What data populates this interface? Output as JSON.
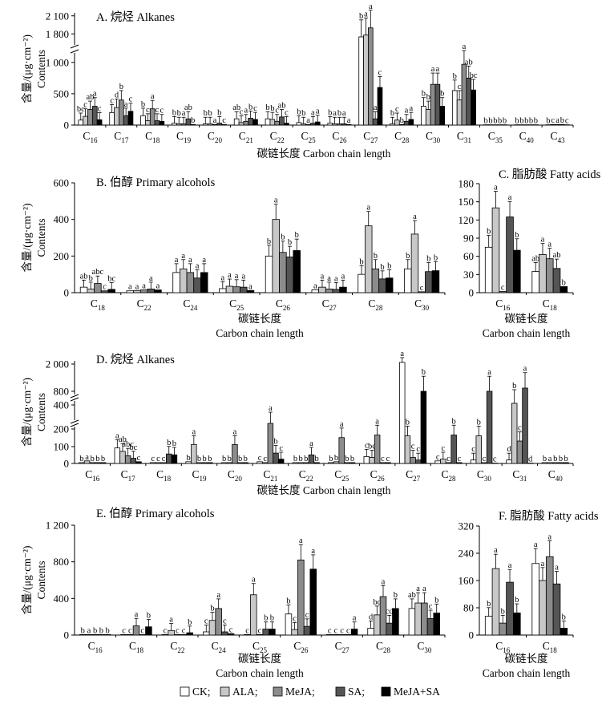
{
  "figure": {
    "legend": [
      "CK;",
      "ALA;",
      "MeJA;",
      "SA;",
      "MeJA+SA"
    ],
    "series_colors": [
      "#ffffff",
      "#c8c8c8",
      "#8c8c8c",
      "#555555",
      "#000000"
    ]
  },
  "chart_data": [
    {
      "id": "A",
      "type": "bar",
      "title": "A.  烷烃 Alkanes",
      "ylabel": [
        "含量/(μg·cm⁻²)",
        "Contents"
      ],
      "xlabel": [
        "碳链长度 Carbon chain length"
      ],
      "yticks": [
        "2 100",
        "1 800",
        "1 000",
        "500",
        "0"
      ],
      "series": [
        "CK",
        "ALA",
        "MeJA",
        "SA",
        "MeJA+SA"
      ],
      "categories": [
        "C16",
        "C17",
        "C18",
        "C19",
        "C20",
        "C21",
        "C22",
        "C25",
        "C26",
        "C27",
        "C28",
        "C30",
        "C31",
        "C35",
        "C40",
        "C43"
      ],
      "values": [
        [
          80,
          140,
          250,
          300,
          85
        ],
        [
          200,
          280,
          400,
          150,
          220
        ],
        [
          150,
          70,
          260,
          70,
          60
        ],
        [
          30,
          20,
          20,
          100,
          10
        ],
        [
          20,
          20,
          10,
          30,
          10
        ],
        [
          100,
          40,
          60,
          110,
          90
        ],
        [
          100,
          90,
          60,
          130,
          30
        ],
        [
          40,
          20,
          10,
          30,
          50
        ],
        [
          30,
          20,
          20,
          20,
          10
        ],
        [
          1400,
          1780,
          1900,
          100,
          600
        ],
        [
          20,
          80,
          10,
          60,
          90
        ],
        [
          300,
          250,
          650,
          650,
          300
        ],
        [
          550,
          400,
          970,
          750,
          560
        ],
        [
          5,
          5,
          5,
          5,
          5
        ],
        [
          5,
          5,
          5,
          5,
          5
        ],
        [
          5,
          10,
          10,
          10,
          5
        ]
      ],
      "letters": [
        [
          "bc",
          "c",
          "ab",
          "a",
          "c"
        ],
        [
          "c",
          "d",
          "b",
          "a",
          "c"
        ],
        [
          "b",
          "c",
          "a",
          "c",
          "c"
        ],
        [
          "b",
          "b",
          "a",
          "ab",
          "b"
        ],
        [
          "b",
          "b",
          "a",
          "b",
          "c"
        ],
        [
          "ab",
          "c",
          "a",
          "b",
          "c"
        ],
        [
          "b",
          "b",
          "c",
          "ab",
          "c"
        ],
        [
          "b",
          "b",
          "a",
          "a",
          "a"
        ],
        [
          "b",
          "a",
          "b",
          "a",
          "a"
        ],
        [
          "b",
          "a",
          "a",
          "a",
          "c"
        ],
        [
          "b",
          "c",
          "b",
          "a",
          "a"
        ],
        [
          "b",
          "b",
          "a",
          "a",
          "b"
        ],
        [
          "b",
          "c",
          "a",
          "ab",
          "bc"
        ],
        [
          "b",
          "b",
          "b",
          "b",
          "b"
        ],
        [
          "b",
          "b",
          "b",
          "b",
          "b"
        ],
        [
          "b",
          "c",
          "a",
          "b",
          "c"
        ]
      ]
    },
    {
      "id": "B",
      "type": "bar",
      "title": "B.  伯醇 Primary alcohols",
      "ylabel": [
        "含量/(μg·cm⁻²)",
        "Contents"
      ],
      "xlabel": [
        "碳链长度",
        "Carbon chain length"
      ],
      "yticks": [
        "600",
        "400",
        "200",
        "0"
      ],
      "ylim": [
        0,
        600
      ],
      "series": [
        "CK",
        "ALA",
        "MeJA",
        "SA",
        "MeJA+SA"
      ],
      "categories": [
        "C18",
        "C22",
        "C24",
        "C25",
        "C26",
        "C27",
        "C28",
        "C30"
      ],
      "values": [
        [
          30,
          20,
          50,
          10,
          18
        ],
        [
          10,
          12,
          15,
          20,
          15
        ],
        [
          110,
          130,
          110,
          80,
          110
        ],
        [
          22,
          35,
          32,
          30,
          12
        ],
        [
          200,
          400,
          220,
          195,
          230
        ],
        [
          15,
          30,
          20,
          18,
          30
        ],
        [
          100,
          365,
          130,
          75,
          80
        ],
        [
          130,
          320,
          5,
          115,
          120
        ]
      ],
      "letters": [
        [
          "ab",
          "b",
          "abc",
          "c",
          "bc"
        ],
        [
          "a",
          "a",
          "a",
          "a",
          "a"
        ],
        [
          "a",
          "a",
          "a",
          "a",
          "a"
        ],
        [
          "a",
          "a",
          "a",
          "a",
          "a"
        ],
        [
          "b",
          "a",
          "b",
          "b",
          "b"
        ],
        [
          "a",
          "a",
          "a",
          "a",
          "a"
        ],
        [
          "b",
          "a",
          "b",
          "b",
          "b"
        ],
        [
          "b",
          "a",
          "c",
          "b",
          "b"
        ]
      ]
    },
    {
      "id": "C",
      "type": "bar",
      "title": "C.  脂肪酸 Fatty acids",
      "xlabel": [
        "碳链长度",
        "Carbon chain length"
      ],
      "yticks": [
        "180",
        "150",
        "120",
        "90",
        "60",
        "30",
        "0"
      ],
      "ylim": [
        0,
        180
      ],
      "series": [
        "CK",
        "ALA",
        "MeJA",
        "SA",
        "MeJA+SA"
      ],
      "categories": [
        "C16",
        "C18"
      ],
      "values": [
        [
          75,
          140,
          2,
          125,
          70
        ],
        [
          35,
          63,
          56,
          40,
          10
        ]
      ],
      "letters": [
        [
          "b",
          "a",
          "c",
          "a",
          "b"
        ],
        [
          "ab",
          "a",
          "a",
          "ab",
          "b"
        ]
      ]
    },
    {
      "id": "D",
      "type": "bar",
      "title": "D.  烷烃 Alkanes",
      "ylabel": [
        "含量/(μg·cm⁻²)",
        "Contents"
      ],
      "xlabel": [
        "碳链长度 Carbon chain length"
      ],
      "yticks": [
        "2 000",
        "800",
        "400",
        "200",
        "100",
        "0"
      ],
      "series": [
        "CK",
        "ALA",
        "MeJA",
        "SA",
        "MeJA+SA"
      ],
      "categories": [
        "C16",
        "C17",
        "C18",
        "C19",
        "C20",
        "C21",
        "C22",
        "C25",
        "C26",
        "C27",
        "C28",
        "C30",
        "C31",
        "C40"
      ],
      "values": [
        [
          5,
          15,
          5,
          5,
          5
        ],
        [
          90,
          70,
          45,
          30,
          10
        ],
        [
          5,
          5,
          5,
          55,
          50
        ],
        [
          10,
          110,
          5,
          5,
          5
        ],
        [
          5,
          5,
          110,
          5,
          5
        ],
        [
          10,
          5,
          250,
          60,
          25
        ],
        [
          5,
          5,
          5,
          50,
          5
        ],
        [
          5,
          10,
          150,
          5,
          5
        ],
        [
          40,
          35,
          165,
          5,
          5
        ],
        [
          2000,
          160,
          35,
          20,
          450
        ],
        [
          15,
          25,
          5,
          165,
          5
        ],
        [
          20,
          160,
          5,
          600,
          2
        ],
        [
          20,
          430,
          130,
          780,
          2
        ],
        [
          5,
          5,
          5,
          5,
          5
        ]
      ],
      "letters": [
        [
          "b",
          "a",
          "b",
          "b",
          "b"
        ],
        [
          "a",
          "ab",
          "abc",
          "bc",
          "c"
        ],
        [
          "c",
          "c",
          "c",
          "b",
          "b"
        ],
        [
          "b",
          "a",
          "b",
          "b",
          "b"
        ],
        [
          "b",
          "b",
          "a",
          "b",
          "b"
        ],
        [
          "c",
          "c",
          "a",
          "b",
          "c"
        ],
        [
          "b",
          "b",
          "b",
          "a",
          "b"
        ],
        [
          "b",
          "b",
          "a",
          "b",
          "b"
        ],
        [
          "c",
          "bc",
          "a",
          "c",
          "c"
        ],
        [
          "a",
          "b",
          "c",
          "c",
          "b"
        ],
        [
          "c",
          "c",
          "c",
          "b",
          "c"
        ],
        [
          "c",
          "b",
          "c",
          "a",
          "c"
        ],
        [
          "d",
          "b",
          "c",
          "a",
          "d"
        ],
        [
          "b",
          "a",
          "b",
          "b",
          "b"
        ]
      ]
    },
    {
      "id": "E",
      "type": "bar",
      "title": "E.  伯醇 Primary alcohols",
      "ylabel": [
        "含量/(μg·cm⁻²)",
        "Contents"
      ],
      "xlabel": [
        "碳链长度",
        "Carbon chain length"
      ],
      "yticks": [
        "1 200",
        "800",
        "400",
        "0"
      ],
      "ylim": [
        0,
        1200
      ],
      "series": [
        "CK",
        "ALA",
        "MeJA",
        "SA",
        "MeJA+SA"
      ],
      "categories": [
        "C16",
        "C18",
        "C22",
        "C24",
        "C25",
        "C26",
        "C27",
        "C28",
        "C30"
      ],
      "values": [
        [
          5,
          5,
          5,
          5,
          5
        ],
        [
          5,
          5,
          100,
          5,
          90
        ],
        [
          5,
          50,
          5,
          5,
          25
        ],
        [
          35,
          160,
          290,
          35,
          15
        ],
        [
          5,
          440,
          5,
          65,
          65
        ],
        [
          230,
          60,
          820,
          95,
          720
        ],
        [
          5,
          5,
          5,
          5,
          65
        ],
        [
          75,
          220,
          420,
          130,
          290
        ],
        [
          290,
          350,
          350,
          180,
          240
        ]
      ],
      "letters": [
        [
          "b",
          "a",
          "b",
          "b",
          "b"
        ],
        [
          "c",
          "c",
          "a",
          "c",
          "b"
        ],
        [
          "c",
          "a",
          "c",
          "c",
          "b"
        ],
        [
          "c",
          "b",
          "a",
          "c",
          "c"
        ],
        [
          "c",
          "a",
          "c",
          "b",
          "b"
        ],
        [
          "b",
          "c",
          "a",
          "c",
          "a"
        ],
        [
          "c",
          "c",
          "c",
          "c",
          "a"
        ],
        [
          "d",
          "bc",
          "a",
          "cd",
          "b"
        ],
        [
          "ab",
          "a",
          "a",
          "c",
          "b"
        ]
      ]
    },
    {
      "id": "F",
      "type": "bar",
      "title": "F.  脂肪酸 Fatty acids",
      "xlabel": [
        "碳链长度",
        "Carbon chain length"
      ],
      "yticks": [
        "320",
        "240",
        "160",
        "80",
        "0"
      ],
      "ylim": [
        0,
        320
      ],
      "series": [
        "CK",
        "ALA",
        "MeJA",
        "SA",
        "MeJA+SA"
      ],
      "categories": [
        "C16",
        "C18"
      ],
      "values": [
        [
          55,
          195,
          35,
          155,
          65
        ],
        [
          210,
          160,
          230,
          150,
          20
        ]
      ],
      "letters": [
        [
          "b",
          "a",
          "b",
          "a",
          "b"
        ],
        [
          "a",
          "a",
          "a",
          "a",
          "b"
        ]
      ]
    }
  ]
}
